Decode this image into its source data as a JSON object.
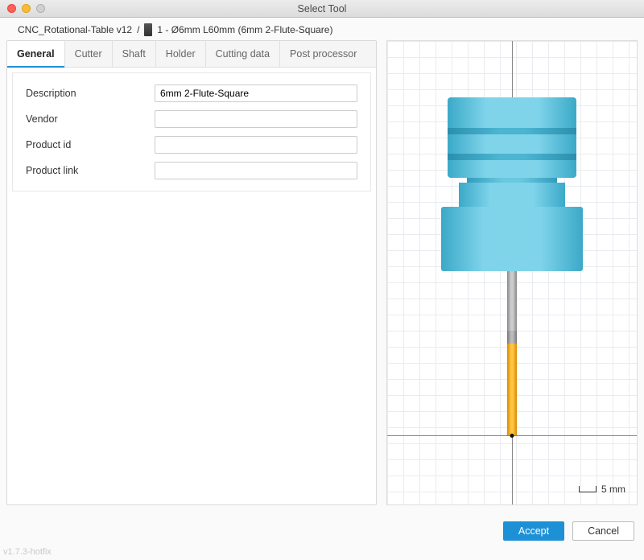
{
  "window": {
    "title": "Select Tool"
  },
  "breadcrumb": {
    "project": "CNC_Rotational-Table v12",
    "sep": "/",
    "tool": "1 - Ø6mm L60mm (6mm 2-Flute-Square)"
  },
  "tabs": {
    "general": "General",
    "cutter": "Cutter",
    "shaft": "Shaft",
    "holder": "Holder",
    "cutting_data": "Cutting data",
    "post_processor": "Post processor"
  },
  "fields": {
    "description": {
      "label": "Description",
      "value": "6mm 2-Flute-Square"
    },
    "vendor": {
      "label": "Vendor",
      "value": ""
    },
    "product_id": {
      "label": "Product id",
      "value": ""
    },
    "product_link": {
      "label": "Product link",
      "value": ""
    }
  },
  "preview": {
    "scale_label": "5 mm",
    "grid_color": "#e8ecf0",
    "axis_color": "#888888",
    "holder_color": "#5fc6e2",
    "shaft_color": "#aaaaaa",
    "flute_color": "#ffb020"
  },
  "buttons": {
    "accept": "Accept",
    "cancel": "Cancel"
  },
  "version": "v1.7.3-hotfix"
}
